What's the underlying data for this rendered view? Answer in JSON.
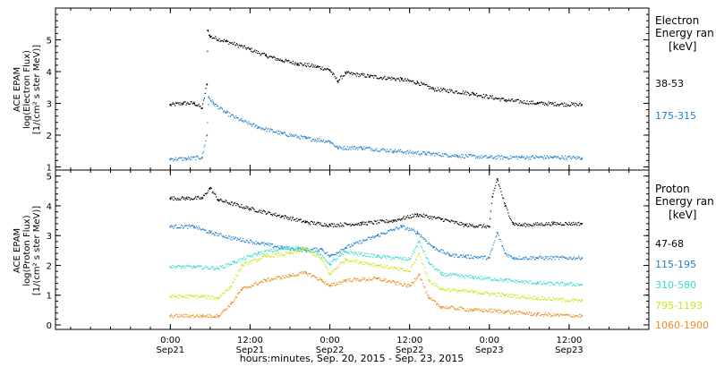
{
  "chart_data": [
    {
      "type": "scatter",
      "panel": "electron",
      "ylabel_lines": [
        "ACE EPAM",
        "log(Electron Flux)",
        "[1/(cm² s ster MeV)]"
      ],
      "ylim": [
        0.9,
        6.0
      ],
      "yticks": [
        1,
        2,
        3,
        4,
        5
      ],
      "legend_title": [
        "Electron",
        "Energy ran",
        "[keV]"
      ],
      "series": [
        {
          "name": "38-53",
          "color": "#000000",
          "x": [
            0,
            0.08,
            0.15,
            0.2,
            0.23,
            0.235,
            0.25,
            0.35,
            0.5,
            0.6,
            0.7,
            0.8,
            0.92,
            1.0,
            1.05,
            1.1,
            1.25,
            1.45,
            1.55,
            1.65,
            1.9,
            2.1,
            2.3,
            2.58
          ],
          "y": [
            2.95,
            3.0,
            3.0,
            2.85,
            3.6,
            5.3,
            5.1,
            4.95,
            4.7,
            4.5,
            4.35,
            4.25,
            4.15,
            4.05,
            3.7,
            3.95,
            3.85,
            3.75,
            3.65,
            3.45,
            3.3,
            3.1,
            3.0,
            2.95
          ]
        },
        {
          "name": "175-315",
          "color": "#1f80d0",
          "x": [
            0,
            0.1,
            0.2,
            0.23,
            0.24,
            0.27,
            0.35,
            0.45,
            0.55,
            0.7,
            0.85,
            1.0,
            1.05,
            1.2,
            1.4,
            1.6,
            1.8,
            2.0,
            2.2,
            2.4,
            2.58
          ],
          "y": [
            1.25,
            1.25,
            1.3,
            2.0,
            3.2,
            3.0,
            2.7,
            2.45,
            2.25,
            2.05,
            1.9,
            1.8,
            1.6,
            1.6,
            1.5,
            1.42,
            1.35,
            1.3,
            1.3,
            1.3,
            1.28
          ]
        }
      ]
    },
    {
      "type": "scatter",
      "panel": "proton",
      "ylabel_lines": [
        "ACE EPAM",
        "log(Proton Flux)",
        "[1/(cm² s ster MeV)]"
      ],
      "ylim": [
        -0.15,
        5.2
      ],
      "yticks": [
        0,
        1,
        2,
        3,
        4,
        5
      ],
      "legend_title": [
        "Proton",
        "Energy ran",
        "[keV]"
      ],
      "series": [
        {
          "name": "47-68",
          "color": "#000000",
          "x": [
            0,
            0.1,
            0.2,
            0.25,
            0.3,
            0.5,
            0.7,
            0.85,
            1.0,
            1.2,
            1.4,
            1.55,
            1.7,
            1.85,
            2.0,
            2.02,
            2.05,
            2.1,
            2.15,
            2.2,
            2.4,
            2.58
          ],
          "y": [
            4.25,
            4.25,
            4.25,
            4.6,
            4.2,
            3.9,
            3.65,
            3.45,
            3.35,
            3.4,
            3.5,
            3.7,
            3.55,
            3.35,
            3.3,
            4.3,
            4.9,
            4.0,
            3.4,
            3.35,
            3.4,
            3.4
          ]
        },
        {
          "name": "115-195",
          "color": "#1f80d0",
          "x": [
            0,
            0.15,
            0.25,
            0.4,
            0.55,
            0.7,
            0.85,
            0.95,
            1.0,
            1.1,
            1.3,
            1.45,
            1.55,
            1.65,
            1.75,
            1.85,
            2.0,
            2.05,
            2.1,
            2.15,
            2.3,
            2.58
          ],
          "y": [
            3.3,
            3.3,
            3.1,
            2.9,
            2.75,
            2.6,
            2.5,
            2.55,
            2.3,
            2.6,
            3.0,
            3.3,
            3.1,
            2.6,
            2.35,
            2.3,
            2.25,
            3.1,
            2.4,
            2.25,
            2.25,
            2.25
          ]
        },
        {
          "name": "310-580",
          "color": "#33dcc8",
          "x": [
            0,
            0.15,
            0.3,
            0.4,
            0.55,
            0.7,
            0.8,
            0.92,
            1.0,
            1.1,
            1.3,
            1.5,
            1.56,
            1.62,
            1.7,
            1.9,
            2.1,
            2.3,
            2.58
          ],
          "y": [
            1.95,
            1.95,
            1.9,
            2.1,
            2.4,
            2.55,
            2.6,
            2.45,
            2.05,
            2.45,
            2.3,
            2.2,
            2.8,
            2.1,
            1.7,
            1.6,
            1.5,
            1.4,
            1.35
          ]
        },
        {
          "name": "795-1193",
          "color": "#c8e61e",
          "x": [
            0,
            0.2,
            0.3,
            0.38,
            0.45,
            0.6,
            0.75,
            0.85,
            0.95,
            1.0,
            1.1,
            1.3,
            1.5,
            1.56,
            1.62,
            1.7,
            1.9,
            2.1,
            2.3,
            2.58
          ],
          "y": [
            0.95,
            0.95,
            0.9,
            1.3,
            2.0,
            2.3,
            2.4,
            2.55,
            2.2,
            1.7,
            2.2,
            2.0,
            1.8,
            2.4,
            1.5,
            1.2,
            1.1,
            1.0,
            0.9,
            0.8
          ]
        },
        {
          "name": "1060-1900",
          "color": "#ee8a1a",
          "x": [
            0,
            0.2,
            0.3,
            0.38,
            0.45,
            0.6,
            0.75,
            0.85,
            0.95,
            1.0,
            1.1,
            1.3,
            1.5,
            1.56,
            1.62,
            1.7,
            1.9,
            2.1,
            2.3,
            2.58
          ],
          "y": [
            0.3,
            0.3,
            0.3,
            0.7,
            1.2,
            1.5,
            1.65,
            1.75,
            1.5,
            1.3,
            1.5,
            1.55,
            1.3,
            1.7,
            0.9,
            0.6,
            0.5,
            0.45,
            0.35,
            0.3
          ]
        }
      ]
    }
  ],
  "time_axis": {
    "xlim": [
      -0.72,
      3.0
    ],
    "major_ticks": [
      0,
      0.5,
      1,
      1.5,
      2,
      2.5
    ],
    "tick_labels": [
      {
        "x": 0,
        "time": "0:00",
        "day": "Sep21"
      },
      {
        "x": 0.5,
        "time": "12:00",
        "day": "Sep21"
      },
      {
        "x": 1,
        "time": "0:00",
        "day": "Sep22"
      },
      {
        "x": 1.5,
        "time": "12:00",
        "day": "Sep22"
      },
      {
        "x": 2,
        "time": "0:00",
        "day": "Sep23"
      },
      {
        "x": 2.5,
        "time": "12:00",
        "day": "Sep23"
      }
    ],
    "xlabel": "hours:minutes, Sep. 20, 2015 - Sep. 23, 2015"
  }
}
